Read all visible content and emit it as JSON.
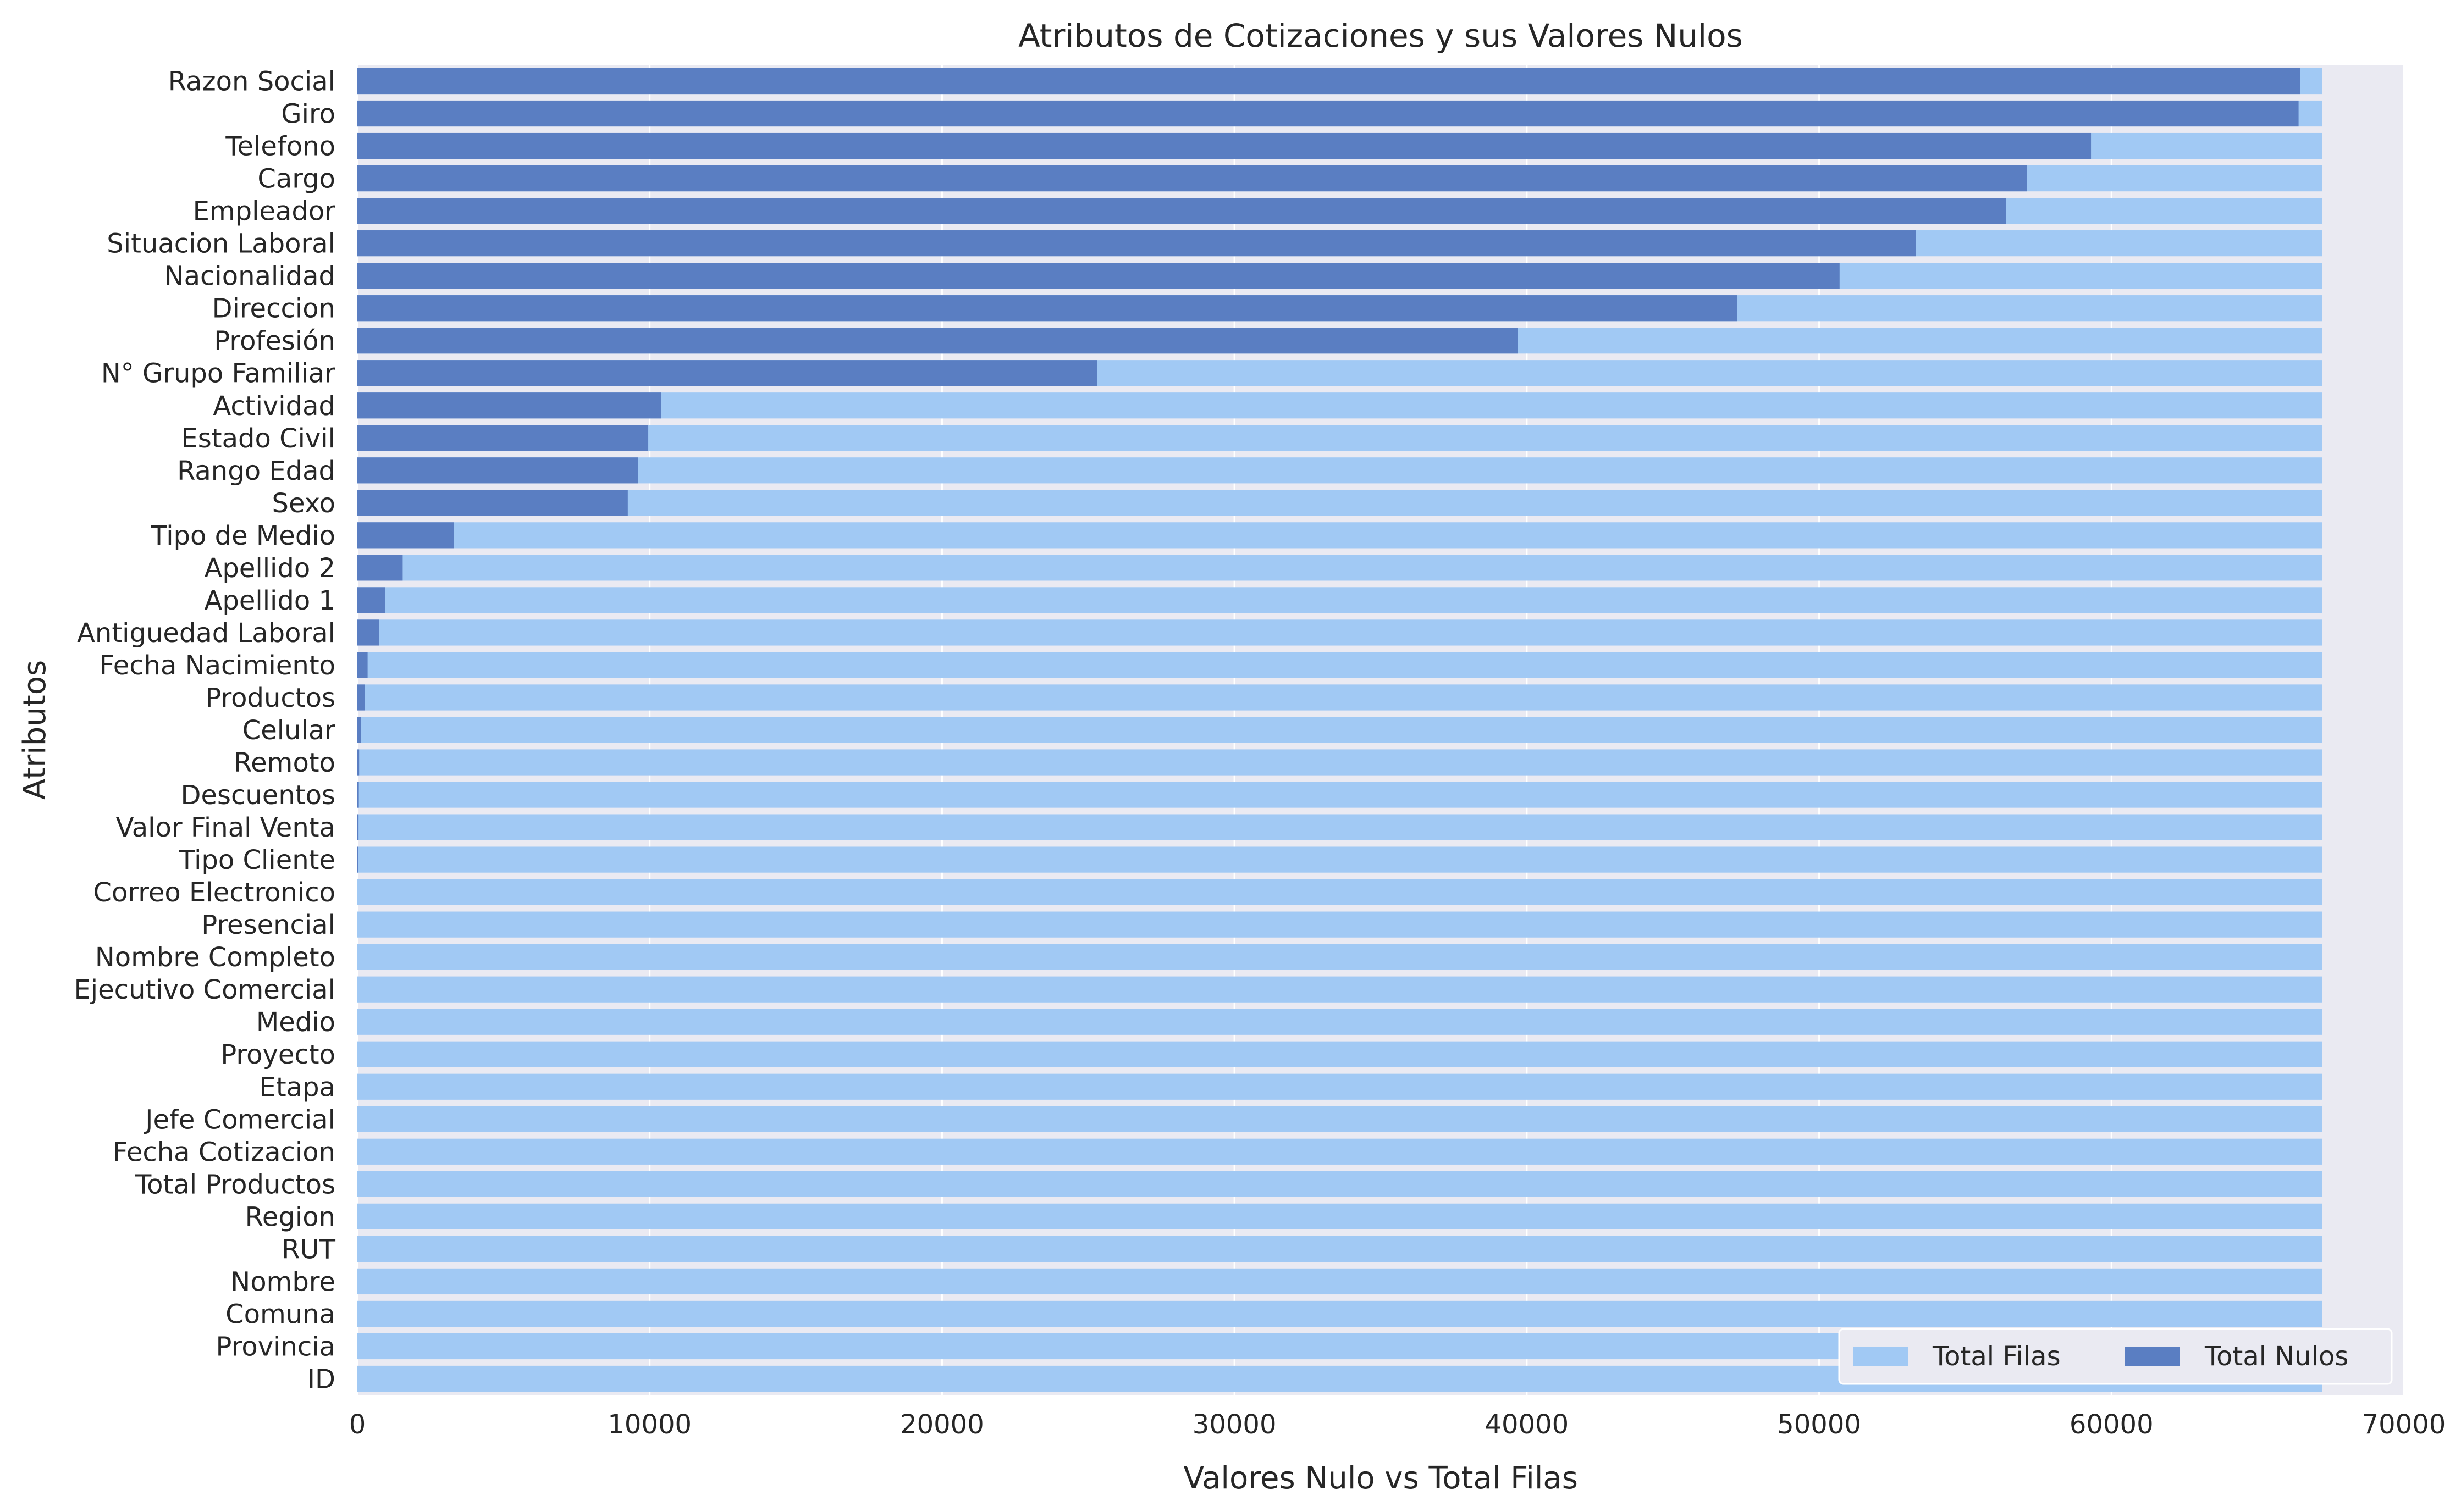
{
  "chart_data": {
    "type": "bar",
    "orientation": "horizontal",
    "title": "Atributos de Cotizaciones y sus Valores Nulos",
    "xlabel": "Valores Nulo vs Total Filas",
    "ylabel": "Atributos",
    "xlim": [
      0,
      70000
    ],
    "xticks": [
      0,
      10000,
      20000,
      30000,
      40000,
      50000,
      60000,
      70000
    ],
    "grid": true,
    "legend_position": "bottom-right",
    "categories": [
      "Razon Social",
      "Giro",
      "Telefono",
      "Cargo",
      "Empleador",
      "Situacion Laboral",
      "Nacionalidad",
      "Direccion",
      "Profesión",
      "N° Grupo Familiar",
      "Actividad",
      "Estado Civil",
      "Rango Edad",
      "Sexo",
      "Tipo de Medio",
      "Apellido 2",
      "Apellido 1",
      "Antiguedad Laboral",
      "Fecha Nacimiento",
      "Productos",
      "Celular",
      "Remoto",
      "Descuentos",
      "Valor Final Venta",
      "Tipo Cliente",
      "Correo Electronico",
      "Presencial",
      "Nombre Completo",
      "Ejecutivo Comercial",
      "Medio",
      "Proyecto",
      "Etapa",
      "Jefe Comercial",
      "Fecha Cotizacion",
      "Total Productos",
      "Region",
      "RUT",
      "Nombre",
      "Comuna",
      "Provincia",
      "ID"
    ],
    "series": [
      {
        "name": "Total Filas",
        "color": "#a1c9f4",
        "values": [
          67200,
          67200,
          67200,
          67200,
          67200,
          67200,
          67200,
          67200,
          67200,
          67200,
          67200,
          67200,
          67200,
          67200,
          67200,
          67200,
          67200,
          67200,
          67200,
          67200,
          67200,
          67200,
          67200,
          67200,
          67200,
          67200,
          67200,
          67200,
          67200,
          67200,
          67200,
          67200,
          67200,
          67200,
          67200,
          67200,
          67200,
          67200,
          67200,
          67200,
          67200
        ]
      },
      {
        "name": "Total Nulos",
        "color": "#5a7ec2",
        "values": [
          66450,
          66400,
          59300,
          57100,
          56400,
          53300,
          50700,
          47200,
          39700,
          25300,
          10400,
          9950,
          9600,
          9250,
          3300,
          1550,
          950,
          750,
          350,
          250,
          120,
          60,
          50,
          40,
          30,
          0,
          0,
          0,
          0,
          0,
          0,
          0,
          0,
          0,
          0,
          0,
          0,
          0,
          0,
          0,
          0
        ]
      }
    ]
  }
}
